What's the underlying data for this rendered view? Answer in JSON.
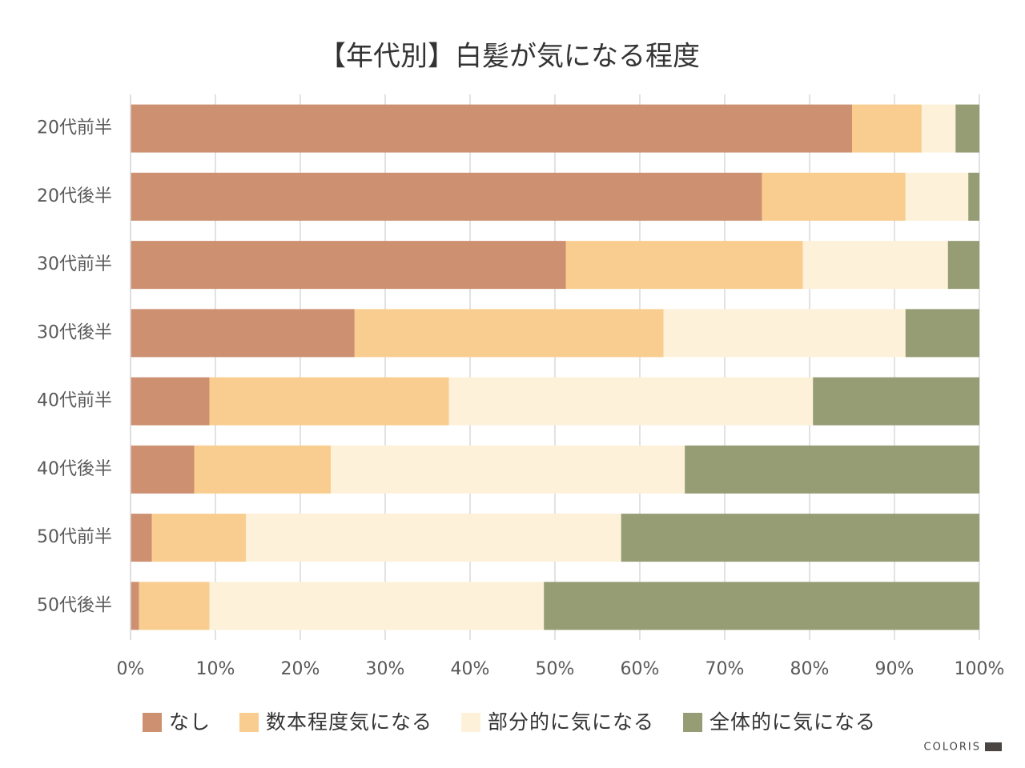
{
  "chart_data": {
    "type": "stacked-bar-horizontal",
    "title": "【年代別】白髪が気になる程度",
    "categories": [
      "20代前半",
      "20代後半",
      "30代前半",
      "30代後半",
      "40代前半",
      "40代後半",
      "50代前半",
      "50代後半"
    ],
    "series": [
      {
        "name": "なし",
        "color": "#cd9070",
        "values": [
          85.0,
          74.4,
          51.3,
          26.4,
          9.3,
          7.5,
          2.5,
          1.0
        ]
      },
      {
        "name": "数本程度気になる",
        "color": "#f9cd8f",
        "values": [
          8.2,
          16.9,
          27.9,
          36.4,
          28.2,
          16.1,
          11.1,
          8.3
        ]
      },
      {
        "name": "部分的に気になる",
        "color": "#fdf1d9",
        "values": [
          4.0,
          7.4,
          17.1,
          28.5,
          42.9,
          41.7,
          44.2,
          39.4
        ]
      },
      {
        "name": "全体的に気になる",
        "color": "#969c73",
        "values": [
          2.8,
          1.3,
          3.7,
          8.7,
          19.6,
          34.7,
          42.2,
          51.3
        ]
      }
    ],
    "xlim": [
      0,
      100
    ],
    "xticks": [
      {
        "value": 0,
        "label": "0%"
      },
      {
        "value": 10,
        "label": "10%"
      },
      {
        "value": 20,
        "label": "20%"
      },
      {
        "value": 30,
        "label": "30%"
      },
      {
        "value": 40,
        "label": "40%"
      },
      {
        "value": 50,
        "label": "50%"
      },
      {
        "value": 60,
        "label": "60%"
      },
      {
        "value": 70,
        "label": "70%"
      },
      {
        "value": 80,
        "label": "80%"
      },
      {
        "value": 90,
        "label": "90%"
      },
      {
        "value": 100,
        "label": "100%"
      }
    ],
    "grid": true,
    "legend": "bottom",
    "watermark": "COLORIS"
  }
}
